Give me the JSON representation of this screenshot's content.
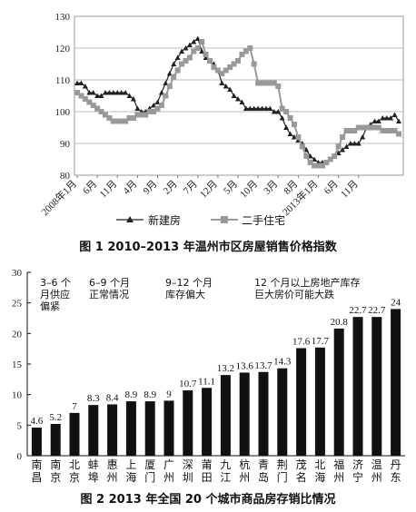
{
  "chart_data": [
    {
      "type": "line",
      "title": "图 1  2010–2013 年温州市区房屋销售价格指数",
      "ylim": [
        80,
        130
      ],
      "yticks": [
        80,
        90,
        100,
        110,
        120,
        130
      ],
      "grid": "y",
      "xtick_labels": [
        "2008年1月",
        "6月",
        "11月",
        "4月",
        "9月",
        "2月",
        "7月",
        "12月",
        "5月",
        "10月",
        "3月",
        "8月",
        "2013年1月",
        "6月",
        "11月"
      ],
      "legend_position": "bottom",
      "series": [
        {
          "name": "新建房",
          "color": "#222222",
          "marker": "triangle",
          "values": [
            109,
            109,
            108,
            106,
            106,
            105,
            105,
            106,
            106,
            106,
            106,
            106,
            106,
            105,
            104,
            101,
            100,
            100,
            101,
            102,
            103,
            106,
            109,
            112,
            115,
            117,
            119,
            120,
            121,
            122,
            123,
            119,
            117,
            116,
            115,
            113,
            109,
            108,
            107,
            105,
            104,
            103,
            101,
            101,
            101,
            101,
            101,
            101,
            101,
            100,
            100,
            98,
            95,
            93,
            92,
            91,
            90,
            88,
            86,
            85,
            84,
            84,
            84,
            85,
            86,
            87,
            88,
            89,
            90,
            90,
            90,
            92,
            95,
            96,
            97,
            97,
            98,
            98,
            98,
            99,
            97
          ]
        },
        {
          "name": "二手住宅",
          "color": "#999999",
          "marker": "square",
          "values": [
            106,
            105,
            104,
            103,
            102,
            101,
            100,
            99,
            98,
            97,
            97,
            97,
            97,
            98,
            98,
            99,
            99,
            99,
            100,
            100,
            101,
            102,
            105,
            108,
            111,
            113,
            115,
            116,
            117,
            119,
            120,
            122,
            118,
            116,
            114,
            113,
            112,
            113,
            114,
            115,
            116,
            118,
            119,
            120,
            115,
            109,
            109,
            109,
            109,
            109,
            108,
            101,
            100,
            98,
            96,
            92,
            89,
            86,
            84,
            83,
            83,
            83,
            84,
            85,
            86,
            89,
            92,
            94,
            94,
            94,
            95,
            95,
            95,
            95,
            95,
            95,
            94,
            94,
            94,
            94,
            93
          ]
        }
      ]
    },
    {
      "type": "bar",
      "title": "图 2  2013 年全国 20 个城市商品房存销比情况",
      "categories": [
        "南昌",
        "南京",
        "北京",
        "蚌埠",
        "惠州",
        "上海",
        "厦门",
        "广州",
        "深圳",
        "莆田",
        "九江",
        "杭州",
        "青岛",
        "荆门",
        "茂名",
        "北海",
        "福州",
        "济宁",
        "温州",
        "丹东"
      ],
      "values": [
        4.6,
        5.2,
        7,
        8.3,
        8.4,
        8.9,
        8.9,
        9,
        10.7,
        11.1,
        13.2,
        13.6,
        13.7,
        14.3,
        17.6,
        17.7,
        20.8,
        22.7,
        22.7,
        24
      ],
      "value_labels": [
        "4.6",
        "5.2",
        "7",
        "8.3",
        "8.4",
        "8.9",
        "8.9",
        "9",
        "10.7",
        "11.1",
        "13.2",
        "13.6",
        "13.7",
        "14.3",
        "17.6",
        "17.7",
        "20.8",
        "22.7",
        "22.7",
        "24"
      ],
      "ylim": [
        0,
        30
      ],
      "yticks": [
        0,
        5,
        10,
        15,
        20,
        25,
        30
      ],
      "grid": "none",
      "bar_color": "#111111",
      "annotations": [
        {
          "lines": [
            "3–6 个",
            "月供应",
            "偏紧"
          ]
        },
        {
          "lines": [
            "6–9 个月",
            "正常情况"
          ]
        },
        {
          "lines": [
            "9–12 个月",
            "库存偏大"
          ]
        },
        {
          "lines": [
            "12 个月以上房地产库存",
            "巨大房价可能大跌"
          ]
        }
      ]
    }
  ]
}
